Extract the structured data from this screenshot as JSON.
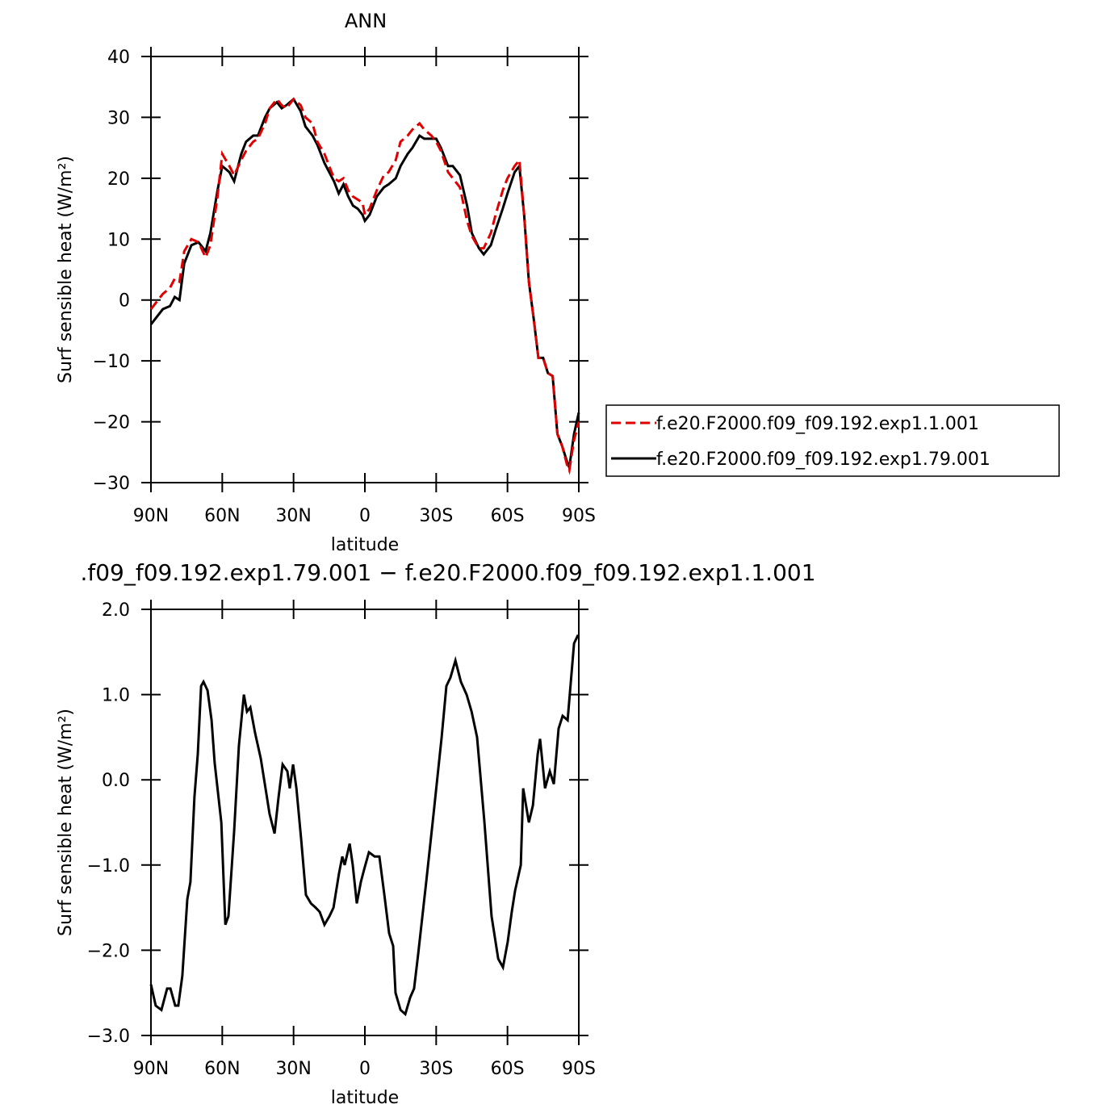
{
  "chart_data": [
    {
      "type": "line",
      "title": "ANN",
      "xlabel": "latitude",
      "ylabel": "Surf sensible heat (W/m²)",
      "x": [
        90,
        85,
        82,
        80,
        78,
        76,
        73,
        70,
        67,
        65,
        62,
        60,
        57,
        55,
        52,
        50,
        47,
        45,
        42,
        40,
        37,
        35,
        33,
        30,
        27,
        25,
        22,
        20,
        17,
        15,
        13,
        11,
        9,
        7,
        5,
        3,
        1,
        0,
        -2,
        -5,
        -8,
        -10,
        -13,
        -15,
        -18,
        -20,
        -23,
        -25,
        -28,
        -30,
        -32,
        -35,
        -37,
        -40,
        -43,
        -45,
        -48,
        -50,
        -53,
        -55,
        -58,
        -60,
        -63,
        -65,
        -67,
        -69,
        -71,
        -73,
        -75,
        -77,
        -79,
        -81,
        -83,
        -85,
        -86,
        -88,
        -90
      ],
      "series": [
        {
          "name": "f.e20.F2000.f09_f09.192.exp1.1.001",
          "color": "#e00000",
          "linestyle": "dashed",
          "values": [
            -1.5,
            1,
            2,
            3.5,
            3,
            8,
            10,
            9.5,
            7,
            9,
            17,
            24,
            22,
            20.5,
            23,
            24.5,
            26,
            26.5,
            29,
            31.5,
            33,
            32,
            31.5,
            33,
            32,
            30,
            29,
            26,
            24,
            22,
            20,
            19.5,
            20,
            18,
            17,
            16.5,
            16,
            14,
            15,
            18,
            20.5,
            21,
            23,
            26,
            27,
            28,
            29,
            28,
            27,
            26,
            24.5,
            21,
            20,
            18.5,
            13,
            10.5,
            8.5,
            8.5,
            11,
            14,
            18,
            20,
            22,
            23,
            14,
            3,
            -3,
            -9.5,
            -9.5,
            -12,
            -12.5,
            -22,
            -24,
            -27,
            -28,
            -23,
            -20
          ]
        },
        {
          "name": "f.e20.F2000.f09_f09.192.exp1.79.001",
          "color": "#000000",
          "linestyle": "solid",
          "values": [
            -4,
            -1.5,
            -1,
            0.5,
            0,
            6,
            9,
            9.5,
            8,
            11,
            18,
            22,
            21,
            19.5,
            24,
            26,
            27,
            27,
            30,
            31.5,
            32.5,
            31.5,
            32,
            33,
            31,
            28.5,
            27,
            25.5,
            22.5,
            21,
            19.5,
            17.5,
            19,
            17,
            15.5,
            15,
            14,
            13,
            14,
            17,
            18.5,
            19,
            20,
            22,
            24,
            25,
            27,
            26.5,
            26.5,
            26.5,
            25,
            22,
            22,
            20.5,
            15.5,
            11,
            8.5,
            7.5,
            9,
            11.5,
            15,
            17.5,
            21,
            22,
            14,
            3,
            -3,
            -9.5,
            -9.5,
            -12,
            -12.5,
            -22,
            -24,
            -26.5,
            -27.5,
            -22,
            -18.5
          ]
        }
      ],
      "xlim": [
        90,
        -90
      ],
      "xticks": [
        {
          "value": 90,
          "label": "90N"
        },
        {
          "value": 60,
          "label": "60N"
        },
        {
          "value": 30,
          "label": "30N"
        },
        0,
        {
          "value": -30,
          "label": "30S"
        },
        {
          "value": -60,
          "label": "60S"
        },
        {
          "value": -90,
          "label": "90S"
        }
      ],
      "ylim": [
        -30,
        40
      ],
      "yticks": [
        40,
        30,
        20,
        10,
        0,
        {
          "value": -10,
          "label": "−10"
        },
        {
          "value": -20,
          "label": "−20"
        },
        {
          "value": -30,
          "label": "−30"
        }
      ],
      "grid": false,
      "legend": "right"
    },
    {
      "type": "line",
      "title": ".f09_f09.192.exp1.79.001 − f.e20.F2000.f09_f09.192.exp1.1.001",
      "xlabel": "latitude",
      "ylabel": "Surf sensible heat (W/m²)",
      "x": [
        90,
        88,
        85.6,
        83.2,
        81.8,
        79.8,
        78.5,
        76.8,
        74.7,
        73.4,
        71.7,
        70.3,
        68.9,
        67.9,
        66.2,
        64.5,
        63.2,
        60.4,
        58.7,
        57.4,
        55,
        53,
        50.9,
        49.6,
        48.2,
        46.2,
        43.8,
        41.8,
        40.1,
        38,
        36.3,
        34.6,
        32.6,
        31.6,
        30.2,
        28.8,
        26.8,
        24.8,
        22.7,
        20.7,
        19,
        17,
        14.9,
        13.2,
        10.9,
        9.5,
        8.5,
        6.4,
        5.1,
        3.4,
        1.7,
        0.3,
        -1.7,
        -4.1,
        -6.1,
        -8.2,
        -10.2,
        -11.9,
        -12.9,
        -15,
        -17,
        -19.1,
        -20.7,
        -22.4,
        -25.8,
        -28.9,
        -32.3,
        -34.3,
        -36,
        -38.1,
        -40.4,
        -42.8,
        -44.9,
        -47.2,
        -50.3,
        -53.3,
        -56.1,
        -58.1,
        -60.1,
        -61.8,
        -63.2,
        -65.6,
        -66.6,
        -69,
        -70.7,
        -72.7,
        -73.7,
        -75.8,
        -77.8,
        -79.5,
        -81.5,
        -83.2,
        -85.3,
        -88,
        -89.7
      ],
      "values": [
        -2.4,
        -2.65,
        -2.7,
        -2.45,
        -2.45,
        -2.65,
        -2.65,
        -2.3,
        -1.4,
        -1.2,
        -0.2,
        0.3,
        1.1,
        1.15,
        1.05,
        0.7,
        0.2,
        -0.5,
        -1.7,
        -1.6,
        -0.6,
        0.4,
        1.0,
        0.8,
        0.85,
        0.55,
        0.25,
        -0.1,
        -0.4,
        -0.63,
        -0.2,
        0.18,
        0.1,
        -0.1,
        0.18,
        -0.1,
        -0.7,
        -1.35,
        -1.45,
        -1.5,
        -1.55,
        -1.7,
        -1.6,
        -1.5,
        -1.1,
        -0.9,
        -1.0,
        -0.75,
        -1.0,
        -1.45,
        -1.2,
        -1.05,
        -0.85,
        -0.9,
        -0.9,
        -1.35,
        -1.8,
        -1.95,
        -2.5,
        -2.7,
        -2.75,
        -2.55,
        -2.45,
        -2.05,
        -1.2,
        -0.4,
        0.5,
        1.1,
        1.2,
        1.4,
        1.15,
        1.0,
        0.8,
        0.5,
        -0.5,
        -1.6,
        -2.1,
        -2.2,
        -1.9,
        -1.55,
        -1.3,
        -1.0,
        -0.1,
        -0.5,
        -0.3,
        0.3,
        0.48,
        -0.1,
        0.1,
        -0.05,
        0.6,
        0.75,
        0.7,
        1.6,
        1.7
      ],
      "color": "#000000",
      "linestyle": "solid",
      "xlim": [
        90,
        -90
      ],
      "xticks": [
        {
          "value": 90,
          "label": "90N"
        },
        {
          "value": 60,
          "label": "60N"
        },
        {
          "value": 30,
          "label": "30N"
        },
        0,
        {
          "value": -30,
          "label": "30S"
        },
        {
          "value": -60,
          "label": "60S"
        },
        {
          "value": -90,
          "label": "90S"
        }
      ],
      "ylim": [
        -3,
        2
      ],
      "yticks": [
        {
          "value": 2,
          "label": "2.0"
        },
        {
          "value": 1,
          "label": "1.0"
        },
        {
          "value": 0,
          "label": "0.0"
        },
        {
          "value": -1,
          "label": "−1.0"
        },
        {
          "value": -2,
          "label": "−2.0"
        },
        {
          "value": -3,
          "label": "−3.0"
        }
      ],
      "grid": false
    }
  ]
}
